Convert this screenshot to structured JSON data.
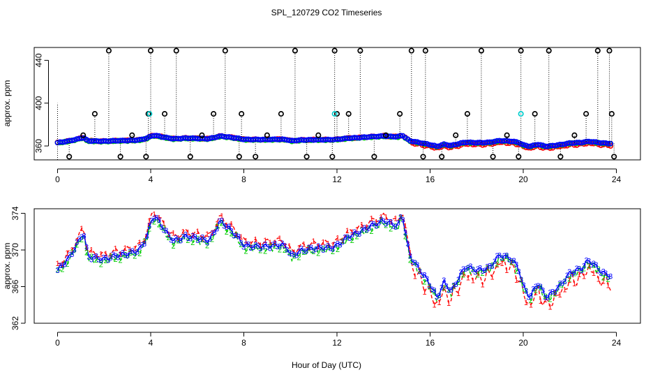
{
  "title": "SPL_120729  CO2 Timeseries",
  "xlabel": "Hour of Day (UTC)",
  "colors": {
    "series1": "#ff0000",
    "series2": "#00cc00",
    "series3": "#0000ff",
    "flag": "#000000",
    "cyan": "#00cccc"
  },
  "chart_data": [
    {
      "type": "scatter",
      "panel": "top",
      "ylabel": "approx. ppm",
      "xlim": [
        0,
        24
      ],
      "ylim": [
        347,
        452
      ],
      "xticks": [
        "0",
        "4",
        "8",
        "12",
        "16",
        "20",
        "24"
      ],
      "yticks": [
        "360",
        "400",
        "440"
      ],
      "grid": false,
      "series": [
        {
          "name": "1",
          "color": "#ff0000"
        },
        {
          "name": "2",
          "color": "#00cc00"
        },
        {
          "name": "3",
          "color": "#0000ff"
        }
      ],
      "outliers": {
        "marker": "o",
        "x": [
          0.5,
          1.1,
          1.6,
          2.2,
          2.7,
          3.2,
          3.8,
          3.9,
          4.0,
          4.6,
          5.1,
          5.7,
          6.2,
          6.7,
          7.2,
          7.8,
          7.9,
          8.5,
          9.0,
          9.6,
          10.2,
          10.7,
          11.2,
          11.8,
          11.9,
          12.0,
          12.5,
          13.0,
          13.6,
          14.1,
          14.7,
          15.2,
          15.7,
          15.8,
          16.5,
          17.1,
          17.6,
          18.2,
          18.7,
          19.3,
          19.8,
          19.9,
          20.5,
          21.1,
          21.6,
          22.2,
          22.7,
          23.2,
          23.7,
          23.8,
          23.9
        ],
        "y": [
          350,
          370,
          390,
          449,
          350,
          370,
          350,
          390,
          449,
          390,
          449,
          350,
          370,
          390,
          449,
          350,
          390,
          350,
          370,
          390,
          449,
          350,
          370,
          350,
          449,
          390,
          390,
          449,
          350,
          370,
          390,
          449,
          350,
          449,
          350,
          370,
          390,
          449,
          350,
          370,
          350,
          449,
          390,
          449,
          350,
          370,
          390,
          449,
          449,
          390,
          350
        ]
      },
      "cyan_points": {
        "x": [
          3.95,
          11.9,
          19.9
        ],
        "y": [
          390,
          390,
          390
        ]
      }
    },
    {
      "type": "line",
      "panel": "bottom",
      "ylabel": "approx. ppm",
      "xlim": [
        0,
        24
      ],
      "ylim": [
        362,
        374.5
      ],
      "xticks": [
        "0",
        "4",
        "8",
        "12",
        "16",
        "20",
        "24"
      ],
      "yticks": [
        "362",
        "366",
        "370",
        "374"
      ],
      "grid": false,
      "series": [
        {
          "name": "1",
          "color": "#ff0000",
          "marker": "1",
          "line": "dashed"
        },
        {
          "name": "2",
          "color": "#00cc00",
          "marker": "2",
          "line": "dashed"
        },
        {
          "name": "3",
          "color": "#0000ff",
          "marker": "3",
          "line": "solid"
        }
      ],
      "base_x": [
        0,
        0.5,
        1.0,
        1.1,
        1.3,
        2.0,
        2.5,
        3.0,
        3.5,
        3.8,
        4.1,
        4.3,
        4.7,
        5.0,
        5.5,
        6.0,
        6.5,
        7.0,
        7.3,
        7.7,
        8.0,
        8.5,
        9.0,
        9.6,
        9.9,
        10.0,
        10.5,
        11.0,
        11.8,
        12.0,
        12.5,
        13.0,
        13.5,
        14.0,
        14.6,
        14.8,
        15.1,
        15.5,
        15.8,
        16.0,
        16.3,
        16.6,
        16.9,
        17.5,
        18.0,
        18.5,
        19.0,
        19.5,
        19.8,
        20.0,
        20.3,
        20.6,
        21.0,
        21.3,
        21.6,
        22.0,
        22.5,
        22.8,
        23.0,
        23.4,
        23.75
      ],
      "base_y": [
        367.8,
        369.2,
        371.4,
        372.2,
        369.3,
        369.0,
        369.4,
        369.6,
        370.0,
        371.2,
        373.8,
        373.3,
        371.8,
        371.0,
        371.5,
        371.3,
        371.0,
        373.2,
        372.5,
        371.5,
        370.5,
        370.4,
        370.4,
        370.6,
        370.2,
        369.3,
        370.0,
        370.2,
        370.3,
        370.5,
        371.5,
        372.0,
        372.7,
        373.2,
        372.6,
        374.0,
        369.5,
        368.0,
        367.0,
        366.2,
        364.8,
        366.5,
        365.5,
        368.2,
        367.8,
        368.0,
        369.5,
        369.0,
        368.0,
        366.0,
        364.8,
        366.5,
        364.8,
        365.5,
        366.2,
        367.5,
        368.0,
        368.9,
        368.5,
        367.5,
        367.2
      ]
    }
  ]
}
